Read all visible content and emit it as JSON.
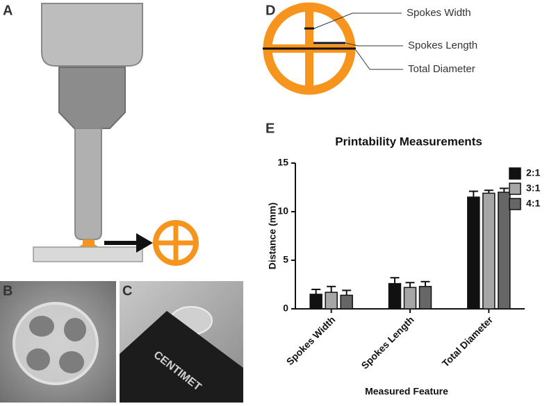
{
  "panel_labels": [
    "A",
    "B",
    "C",
    "D",
    "E"
  ],
  "diagram_labels": [
    "Spokes Width",
    "Spokes Length",
    "Total Diameter"
  ],
  "photo_c_text": "CENTIMET",
  "chart_data": {
    "type": "bar",
    "title": "Printability Measurements",
    "x_label": "Measured Feature",
    "y_label": "Distance (mm)",
    "categories": [
      "Spokes Width",
      "Spokes Length",
      "Total Diameter"
    ],
    "series": [
      {
        "name": "2:1",
        "color": "#111111",
        "values": [
          1.5,
          2.6,
          11.5
        ],
        "errors": [
          0.5,
          0.6,
          0.6
        ]
      },
      {
        "name": "3:1",
        "color": "#a6a6a6",
        "values": [
          1.7,
          2.2,
          11.9
        ],
        "errors": [
          0.6,
          0.5,
          0.3
        ]
      },
      {
        "name": "4:1",
        "color": "#666666",
        "values": [
          1.4,
          2.3,
          12.0
        ],
        "errors": [
          0.5,
          0.5,
          0.4
        ]
      }
    ],
    "ylim": [
      0,
      15
    ],
    "yticks": [
      0,
      5,
      10,
      15
    ],
    "legend": "upper right",
    "grid": false
  }
}
